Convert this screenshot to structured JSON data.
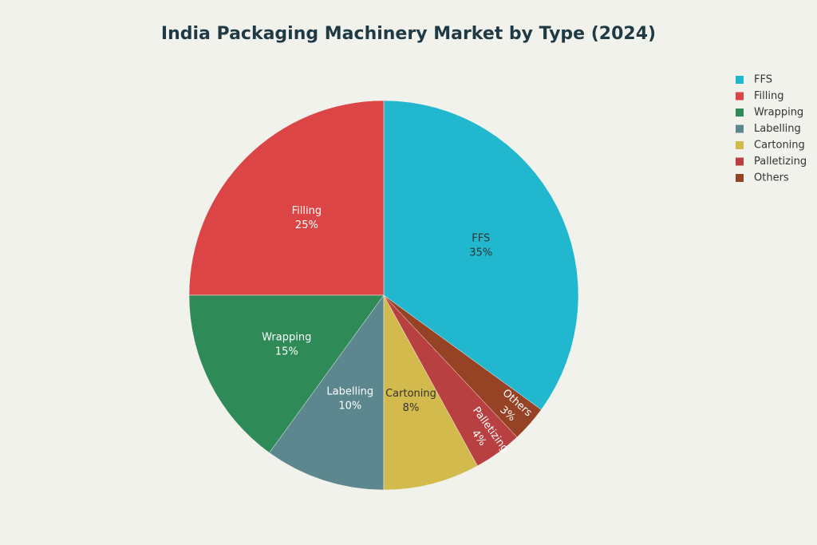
{
  "chart_data": {
    "type": "pie",
    "title": "India Packaging Machinery Market by Type (2024)",
    "categories": [
      "FFS",
      "Filling",
      "Wrapping",
      "Labelling",
      "Cartoning",
      "Palletizing",
      "Others"
    ],
    "values": [
      35,
      25,
      15,
      10,
      8,
      4,
      3
    ],
    "value_labels": [
      "35%",
      "25%",
      "15%",
      "10%",
      "8%",
      "4%",
      "3%"
    ],
    "colors": [
      "#21b8cf",
      "#db4545",
      "#2e8b57",
      "#5d878f",
      "#d2ba4c",
      "#b94040",
      "#964325"
    ],
    "legend": "top-right"
  }
}
